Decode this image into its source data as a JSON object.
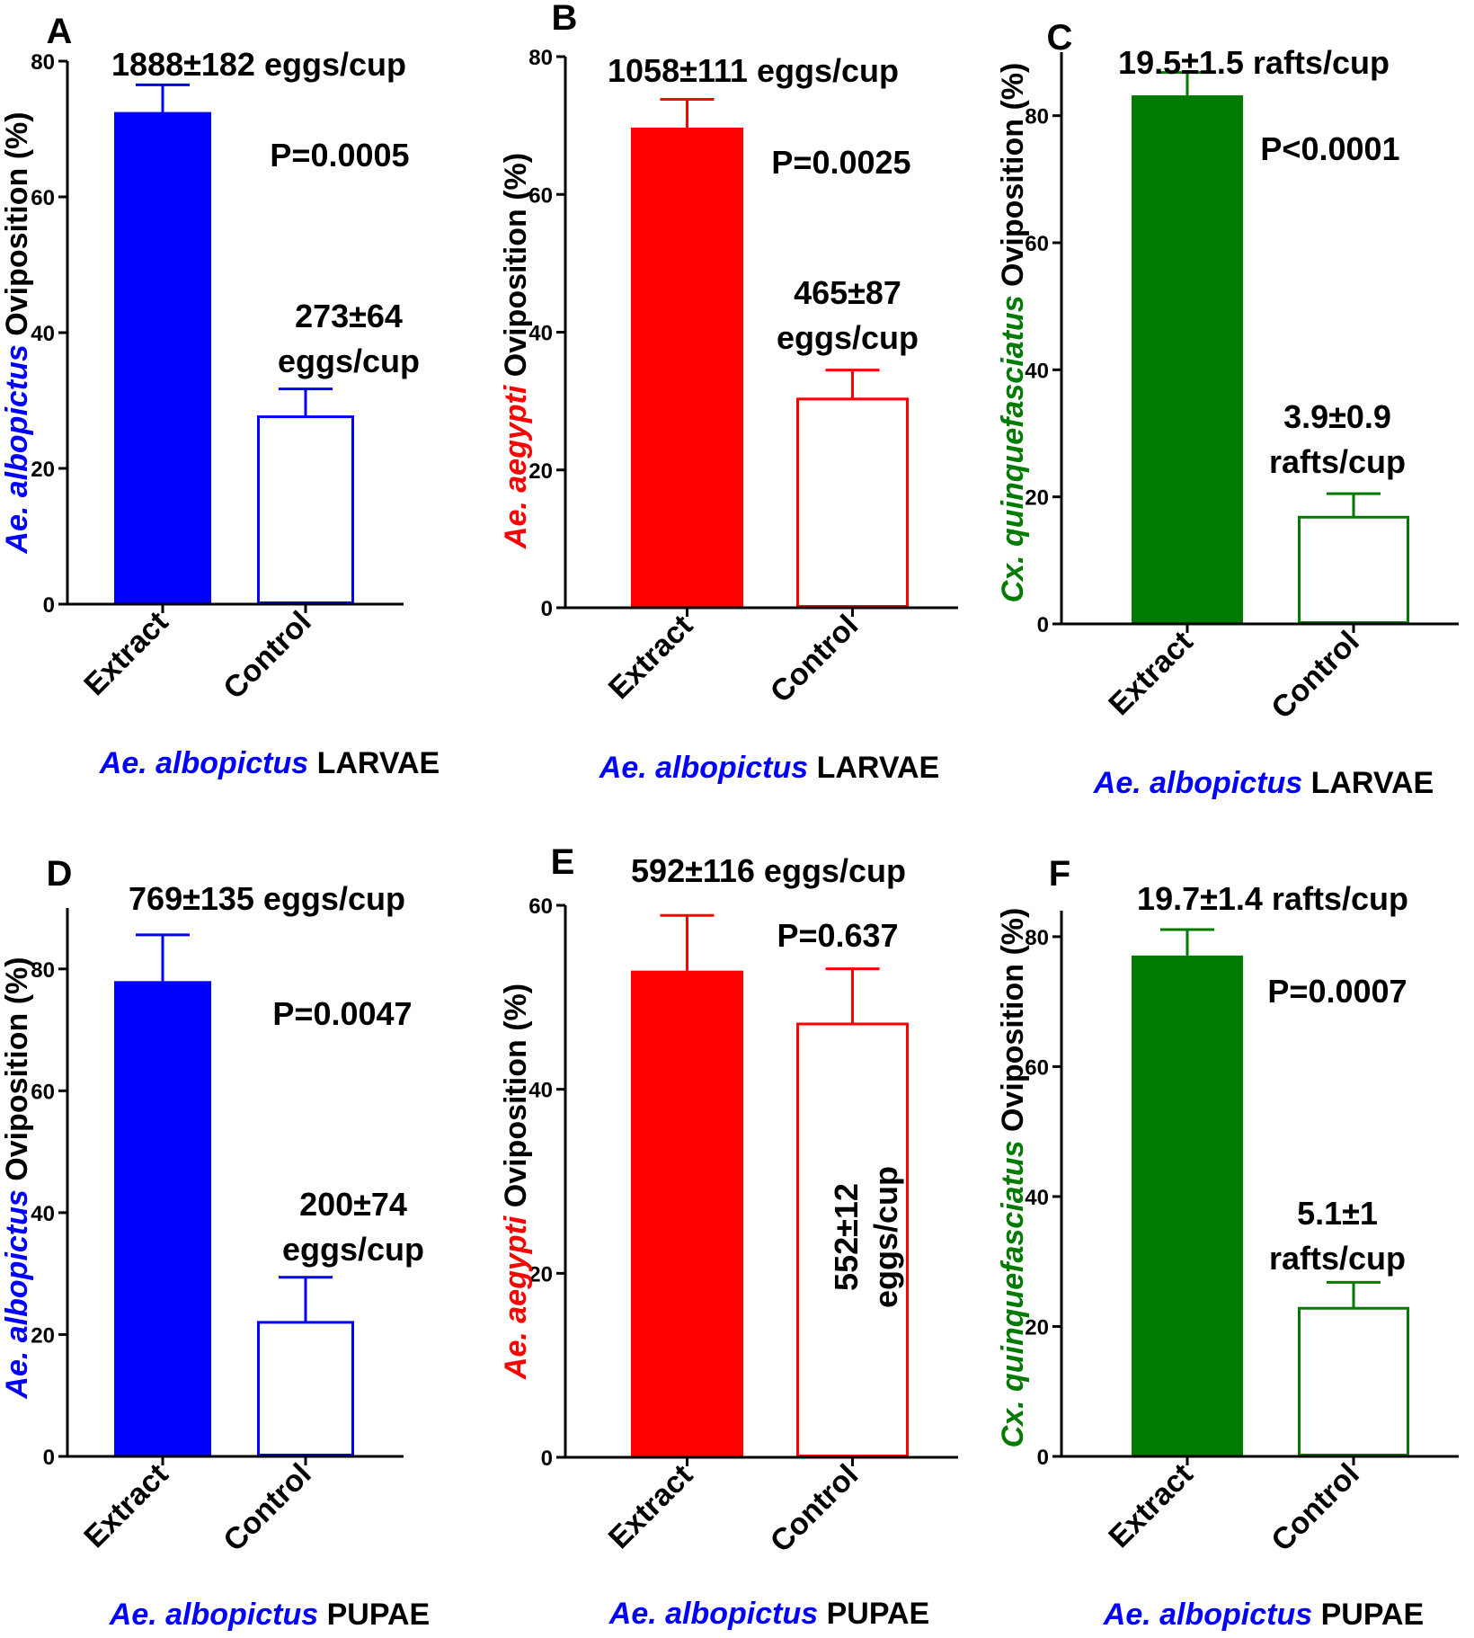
{
  "chart_data": [
    {
      "panel": "A",
      "type": "bar",
      "categories": [
        "Extract",
        "Control"
      ],
      "values": [
        72.5,
        27.6
      ],
      "errors": [
        4.0,
        4.1
      ],
      "ylim": [
        0,
        80
      ],
      "yticks": [
        0,
        20,
        40,
        60,
        80
      ],
      "ylabel_species": "Ae. albopictus",
      "ylabel_rest": " Oviposition (%)",
      "xlabel_species": "Ae. albopictus",
      "xlabel_rest": " LARVAE",
      "color": "#0000ff",
      "species_color": "#0000ff",
      "xlabel_color": "#0000ff",
      "annotations": {
        "extract": [
          "1888±182 eggs/cup"
        ],
        "p": "P=0.0005",
        "control": [
          "273±64",
          "eggs/cup"
        ]
      }
    },
    {
      "panel": "B",
      "type": "bar",
      "categories": [
        "Extract",
        "Control"
      ],
      "values": [
        69.7,
        30.3
      ],
      "errors": [
        4.1,
        4.2
      ],
      "ylim": [
        0,
        80
      ],
      "yticks": [
        0,
        20,
        40,
        60,
        80
      ],
      "ylabel_species": "Ae. aegypti",
      "ylabel_rest": " Oviposition (%)",
      "xlabel_species": "Ae. albopictus",
      "xlabel_rest": " LARVAE",
      "color": "#ff0000",
      "species_color": "#ff0000",
      "xlabel_color": "#0000ff",
      "annotations": {
        "extract": [
          "1058±111 eggs/cup"
        ],
        "p": "P=0.0025",
        "control": [
          "465±87",
          "eggs/cup"
        ]
      }
    },
    {
      "panel": "C",
      "type": "bar",
      "categories": [
        "Extract",
        "Control"
      ],
      "values": [
        83.2,
        16.8
      ],
      "errors": [
        3.6,
        3.7
      ],
      "ylim": [
        0,
        90
      ],
      "yticks": [
        0,
        20,
        40,
        60,
        80
      ],
      "ylabel_species": "Cx. quinquefasciatus",
      "ylabel_rest": " Oviposition (%)",
      "xlabel_species": "Ae. albopictus",
      "xlabel_rest": " LARVAE",
      "color": "#007a00",
      "species_color": "#007a00",
      "xlabel_color": "#0000ff",
      "annotations": {
        "extract": [
          "19.5±1.5 rafts/cup"
        ],
        "p": "P<0.0001",
        "control": [
          "3.9±0.9",
          "rafts/cup"
        ]
      }
    },
    {
      "panel": "D",
      "type": "bar",
      "categories": [
        "Extract",
        "Control"
      ],
      "values": [
        78.0,
        22.0
      ],
      "errors": [
        7.6,
        7.4
      ],
      "ylim": [
        0,
        90
      ],
      "yticks": [
        0,
        20,
        40,
        60,
        80
      ],
      "ylabel_species": "Ae. albopictus",
      "ylabel_rest": " Oviposition (%)",
      "xlabel_species": "Ae. albopictus",
      "xlabel_rest": " PUPAE",
      "color": "#0000ff",
      "species_color": "#0000ff",
      "xlabel_color": "#0000ff",
      "annotations": {
        "extract": [
          "769±135 eggs/cup"
        ],
        "p": "P=0.0047",
        "control": [
          "200±74",
          "eggs/cup"
        ]
      }
    },
    {
      "panel": "E",
      "type": "bar",
      "categories": [
        "Extract",
        "Control"
      ],
      "values": [
        52.9,
        47.1
      ],
      "errors": [
        6.0,
        6.0
      ],
      "ylim": [
        0,
        60
      ],
      "yticks": [
        0,
        20,
        40,
        60
      ],
      "ylabel_species": "Ae. aegypti",
      "ylabel_rest": " Oviposition (%)",
      "xlabel_species": "Ae. albopictus",
      "xlabel_rest": " PUPAE",
      "color": "#ff0000",
      "species_color": "#ff0000",
      "xlabel_color": "#0000ff",
      "annotations": {
        "extract": [
          "592±116 eggs/cup"
        ],
        "p": "P=0.637",
        "control": [
          "552±12",
          "eggs/cup"
        ]
      }
    },
    {
      "panel": "F",
      "type": "bar",
      "categories": [
        "Extract",
        "Control"
      ],
      "values": [
        77.1,
        22.8
      ],
      "errors": [
        4.0,
        4.0
      ],
      "ylim": [
        0,
        84
      ],
      "yticks": [
        0,
        20,
        40,
        60,
        80
      ],
      "ylabel_species": "Cx. quinquefasciatus",
      "ylabel_rest": " Oviposition (%)",
      "xlabel_species": "Ae. albopictus",
      "xlabel_rest": " PUPAE",
      "color": "#007a00",
      "species_color": "#007a00",
      "xlabel_color": "#0000ff",
      "annotations": {
        "extract": [
          "19.7±1.4 rafts/cup"
        ],
        "p": "P=0.0007",
        "control": [
          "5.1±1",
          "rafts/cup"
        ]
      }
    }
  ]
}
